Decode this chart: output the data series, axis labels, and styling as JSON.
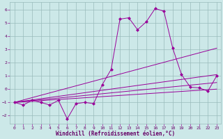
{
  "xlabel": "Windchill (Refroidissement éolien,°C)",
  "background_color": "#cce8e8",
  "grid_color": "#99bbbb",
  "line_color": "#990099",
  "xlim": [
    -0.5,
    23.5
  ],
  "ylim": [
    -2.6,
    6.6
  ],
  "xticks": [
    0,
    1,
    2,
    3,
    4,
    5,
    6,
    7,
    8,
    9,
    10,
    11,
    12,
    13,
    14,
    15,
    16,
    17,
    18,
    19,
    20,
    21,
    22,
    23
  ],
  "yticks": [
    -2,
    -1,
    0,
    1,
    2,
    3,
    4,
    5,
    6
  ],
  "series1_x": [
    0,
    1,
    2,
    3,
    4,
    5,
    6,
    7,
    8,
    9,
    10,
    11,
    12,
    13,
    14,
    15,
    16,
    17,
    18,
    19,
    20,
    21,
    22,
    23
  ],
  "series1_y": [
    -1.0,
    -1.2,
    -0.85,
    -1.0,
    -1.2,
    -0.85,
    -2.25,
    -1.1,
    -1.0,
    -1.1,
    0.35,
    1.5,
    5.3,
    5.4,
    4.5,
    5.1,
    6.1,
    5.9,
    3.1,
    1.1,
    0.15,
    0.1,
    -0.15,
    1.0
  ],
  "trend1_x": [
    0,
    23
  ],
  "trend1_y": [
    -1.0,
    3.1
  ],
  "trend2_x": [
    0,
    23
  ],
  "trend2_y": [
    -1.0,
    1.1
  ],
  "trend3_x": [
    0,
    23
  ],
  "trend3_y": [
    -1.0,
    0.5
  ],
  "trend4_x": [
    0,
    23
  ],
  "trend4_y": [
    -1.0,
    0.0
  ]
}
